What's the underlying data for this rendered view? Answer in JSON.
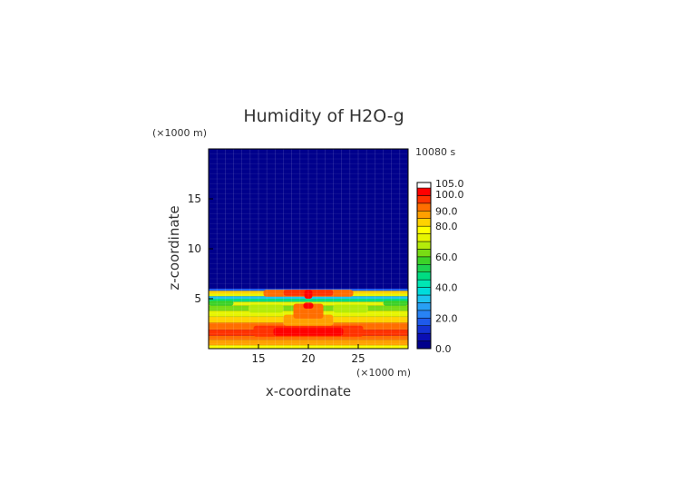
{
  "chart_data": {
    "type": "heatmap",
    "title": "Humidity of H2O-g",
    "xlabel": "x-coordinate",
    "ylabel": "z-coordinate",
    "x_unit": "(×1000 m)",
    "y_unit": "(×1000 m)",
    "time_label": "10080 s",
    "xlim": [
      10,
      30
    ],
    "ylim": [
      0,
      20
    ],
    "x_ticks": [
      "15",
      "20",
      "25"
    ],
    "x_tick_values": [
      15,
      20,
      25
    ],
    "y_ticks": [
      "5",
      "10",
      "15"
    ],
    "y_tick_values": [
      5,
      10,
      15
    ],
    "colorbar": {
      "range": [
        0,
        105
      ],
      "labels": [
        "0.0",
        "20.0",
        "40.0",
        "60.0",
        "80.0",
        "90.0",
        "100.0",
        "105.0"
      ],
      "label_values": [
        0,
        20,
        40,
        60,
        80,
        90,
        100,
        105
      ],
      "levels": [
        {
          "from": 0,
          "to": 5,
          "color": "#00008c"
        },
        {
          "from": 5,
          "to": 10,
          "color": "#0a0fb4"
        },
        {
          "from": 10,
          "to": 15,
          "color": "#1432d2"
        },
        {
          "from": 15,
          "to": 20,
          "color": "#1e5aeb"
        },
        {
          "from": 20,
          "to": 25,
          "color": "#2882f5"
        },
        {
          "from": 25,
          "to": 30,
          "color": "#28a0f5"
        },
        {
          "from": 30,
          "to": 35,
          "color": "#1ec3f0"
        },
        {
          "from": 35,
          "to": 40,
          "color": "#00dcdc"
        },
        {
          "from": 40,
          "to": 45,
          "color": "#00e6b4"
        },
        {
          "from": 45,
          "to": 50,
          "color": "#00dc82"
        },
        {
          "from": 50,
          "to": 55,
          "color": "#1ed250"
        },
        {
          "from": 55,
          "to": 60,
          "color": "#3cd228"
        },
        {
          "from": 60,
          "to": 65,
          "color": "#78dc14"
        },
        {
          "from": 65,
          "to": 70,
          "color": "#b4eb0a"
        },
        {
          "from": 70,
          "to": 75,
          "color": "#e6f500"
        },
        {
          "from": 75,
          "to": 80,
          "color": "#ffff00"
        },
        {
          "from": 80,
          "to": 85,
          "color": "#ffd200"
        },
        {
          "from": 85,
          "to": 90,
          "color": "#ffa000"
        },
        {
          "from": 90,
          "to": 95,
          "color": "#ff6e00"
        },
        {
          "from": 95,
          "to": 100,
          "color": "#ff3200"
        },
        {
          "from": 100,
          "to": 105,
          "color": "#ff0000"
        },
        {
          "from": 105,
          "to": 110,
          "color": "#ffffff"
        }
      ]
    },
    "field": {
      "background_value": 2,
      "layers": [
        {
          "z": [
            0.0,
            0.35
          ],
          "value": 77
        },
        {
          "z": [
            0.35,
            0.9
          ],
          "value": 87
        },
        {
          "z": [
            0.9,
            1.3
          ],
          "value": 92
        },
        {
          "z": [
            1.3,
            1.9
          ],
          "value": 96
        },
        {
          "z": [
            1.9,
            2.6
          ],
          "value": 90
        },
        {
          "z": [
            2.6,
            3.2
          ],
          "value": 82
        },
        {
          "z": [
            3.2,
            3.8
          ],
          "value": 72
        },
        {
          "z": [
            3.8,
            4.3
          ],
          "value": 60
        },
        {
          "z": [
            4.3,
            4.7
          ],
          "value": 72
        },
        {
          "z": [
            4.7,
            5.0
          ],
          "value": 45
        },
        {
          "z": [
            5.0,
            5.25
          ],
          "value": 32
        },
        {
          "z": [
            5.25,
            5.5
          ],
          "value": 72
        },
        {
          "z": [
            5.5,
            5.8
          ],
          "value": 84
        },
        {
          "z": [
            5.8,
            6.0
          ],
          "value": 18
        },
        {
          "z": [
            6.0,
            20.0
          ],
          "value": 2
        }
      ],
      "patches": [
        {
          "x": [
            14.5,
            25.5
          ],
          "z": [
            1.2,
            2.3
          ],
          "value": 96
        },
        {
          "x": [
            16.5,
            23.5
          ],
          "z": [
            1.3,
            2.1
          ],
          "value": 100
        },
        {
          "x": [
            17.5,
            22.5
          ],
          "z": [
            2.3,
            3.4
          ],
          "value": 87
        },
        {
          "x": [
            18.5,
            21.5
          ],
          "z": [
            3.0,
            4.5
          ],
          "value": 90
        },
        {
          "x": [
            19.5,
            20.5
          ],
          "z": [
            4.0,
            4.6
          ],
          "value": 100
        },
        {
          "x": [
            15.5,
            24.5
          ],
          "z": [
            5.2,
            5.9
          ],
          "value": 92
        },
        {
          "x": [
            17.5,
            22.5
          ],
          "z": [
            5.3,
            5.9
          ],
          "value": 98
        },
        {
          "x": [
            19.6,
            20.4
          ],
          "z": [
            5.0,
            5.9
          ],
          "value": 104
        },
        {
          "x": [
            14.0,
            17.5
          ],
          "z": [
            3.6,
            4.4
          ],
          "value": 67
        },
        {
          "x": [
            22.5,
            26.0
          ],
          "z": [
            3.6,
            4.4
          ],
          "value": 67
        },
        {
          "x": [
            10.0,
            12.5
          ],
          "z": [
            4.3,
            4.8
          ],
          "value": 55
        },
        {
          "x": [
            27.5,
            30.0
          ],
          "z": [
            4.3,
            4.8
          ],
          "value": 55
        }
      ]
    }
  }
}
